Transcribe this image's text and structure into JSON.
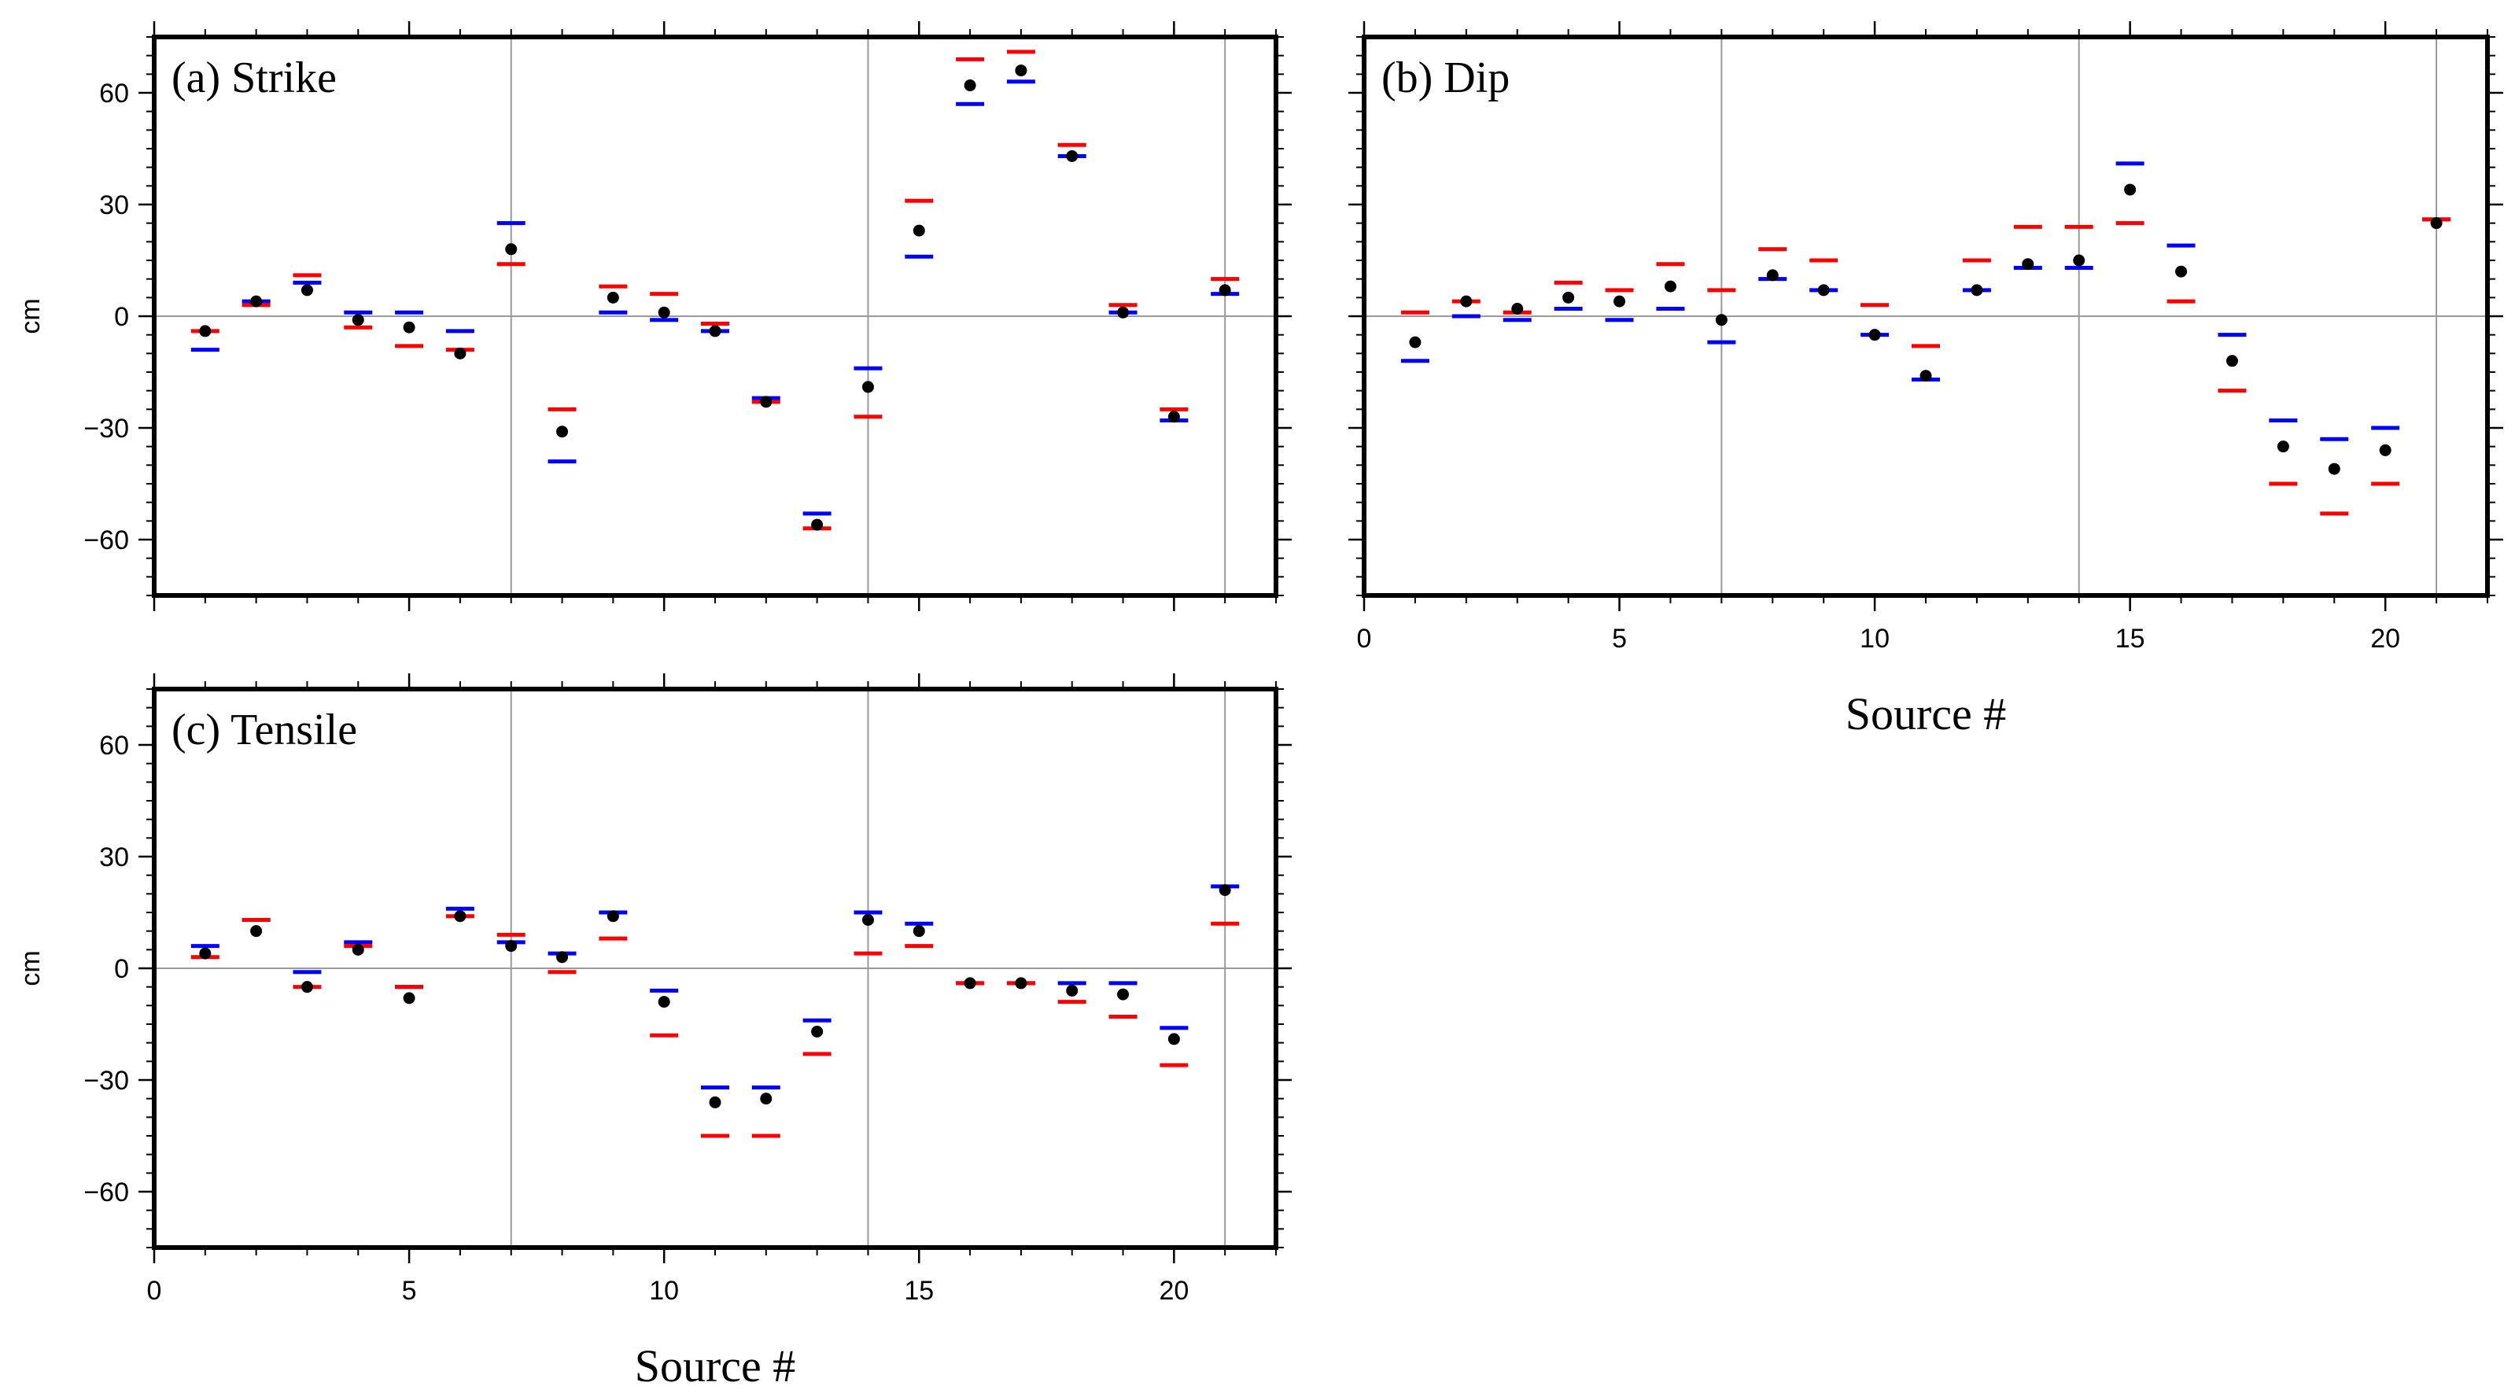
{
  "chart_data": [
    {
      "type": "scatter",
      "panel_label": "(a) Strike",
      "xlabel": "Source #",
      "ylabel": "cm",
      "xlim": [
        0,
        22
      ],
      "ylim": [
        -75,
        75
      ],
      "xticks": [
        0,
        5,
        10,
        15,
        20
      ],
      "yticks": [
        -60,
        -30,
        0,
        30,
        60
      ],
      "vlines": [
        7,
        14,
        21
      ],
      "hline": 0,
      "x": [
        1,
        2,
        3,
        4,
        5,
        6,
        7,
        8,
        9,
        10,
        11,
        12,
        13,
        14,
        15,
        16,
        17,
        18,
        19,
        20,
        21
      ],
      "series": [
        {
          "color": "#0000ff",
          "marker": "dash",
          "values": [
            -9,
            4,
            9,
            1,
            1,
            -4,
            25,
            -39,
            1,
            -1,
            -4,
            -22,
            -53,
            -14,
            16,
            57,
            63,
            43,
            1,
            -28,
            6
          ]
        },
        {
          "color": "#ff0000",
          "marker": "dash",
          "values": [
            -4,
            3,
            11,
            -3,
            -8,
            -9,
            14,
            -25,
            8,
            6,
            -2,
            -23,
            -57,
            -27,
            31,
            69,
            71,
            46,
            3,
            -25,
            10
          ]
        },
        {
          "color": "#000000",
          "marker": "dot",
          "values": [
            -4,
            4,
            7,
            -1,
            -3,
            -10,
            18,
            -31,
            5,
            1,
            -4,
            -23,
            -56,
            -19,
            23,
            62,
            66,
            43,
            1,
            -27,
            7
          ]
        }
      ]
    },
    {
      "type": "scatter",
      "panel_label": "(b) Dip",
      "xlabel": "Source #",
      "ylabel": "",
      "xlim": [
        0,
        22
      ],
      "ylim": [
        -75,
        75
      ],
      "xticks": [
        0,
        5,
        10,
        15,
        20
      ],
      "yticks": [
        -60,
        -30,
        0,
        30,
        60
      ],
      "vlines": [
        7,
        14,
        21
      ],
      "hline": 0,
      "x": [
        1,
        2,
        3,
        4,
        5,
        6,
        7,
        8,
        9,
        10,
        11,
        12,
        13,
        14,
        15,
        16,
        17,
        18,
        19,
        20,
        21
      ],
      "series": [
        {
          "color": "#0000ff",
          "marker": "dash",
          "values": [
            -12,
            0,
            -1,
            2,
            -1,
            2,
            -7,
            10,
            7,
            -5,
            -17,
            7,
            13,
            13,
            41,
            19,
            -5,
            -28,
            -33,
            -30,
            26
          ]
        },
        {
          "color": "#ff0000",
          "marker": "dash",
          "values": [
            1,
            4,
            1,
            9,
            7,
            14,
            7,
            18,
            15,
            3,
            -8,
            15,
            24,
            24,
            25,
            4,
            -20,
            -45,
            -53,
            -45,
            26
          ]
        },
        {
          "color": "#000000",
          "marker": "dot",
          "values": [
            -7,
            4,
            2,
            5,
            4,
            8,
            -1,
            11,
            7,
            -5,
            -16,
            7,
            14,
            15,
            34,
            12,
            -12,
            -35,
            -41,
            -36,
            25
          ]
        }
      ]
    },
    {
      "type": "scatter",
      "panel_label": "(c) Tensile",
      "xlabel": "Source #",
      "ylabel": "cm",
      "xlim": [
        0,
        22
      ],
      "ylim": [
        -75,
        75
      ],
      "xticks": [
        0,
        5,
        10,
        15,
        20
      ],
      "yticks": [
        -60,
        -30,
        0,
        30,
        60
      ],
      "vlines": [
        7,
        14,
        21
      ],
      "hline": 0,
      "x": [
        1,
        2,
        3,
        4,
        5,
        6,
        7,
        8,
        9,
        10,
        11,
        12,
        13,
        14,
        15,
        16,
        17,
        18,
        19,
        20,
        21
      ],
      "series": [
        {
          "color": "#0000ff",
          "marker": "dash",
          "values": [
            6,
            13,
            -1,
            7,
            -5,
            16,
            7,
            4,
            15,
            -6,
            -32,
            -32,
            -14,
            15,
            12,
            -4,
            -4,
            -4,
            -4,
            -16,
            22
          ]
        },
        {
          "color": "#ff0000",
          "marker": "dash",
          "values": [
            3,
            13,
            -5,
            6,
            -5,
            14,
            9,
            -1,
            8,
            -18,
            -45,
            -45,
            -23,
            4,
            6,
            -4,
            -4,
            -9,
            -13,
            -26,
            12
          ]
        },
        {
          "color": "#000000",
          "marker": "dot",
          "values": [
            4,
            10,
            -5,
            5,
            -8,
            14,
            6,
            3,
            14,
            -9,
            -36,
            -35,
            -17,
            13,
            10,
            -4,
            -4,
            -6,
            -7,
            -19,
            21
          ]
        }
      ]
    }
  ]
}
